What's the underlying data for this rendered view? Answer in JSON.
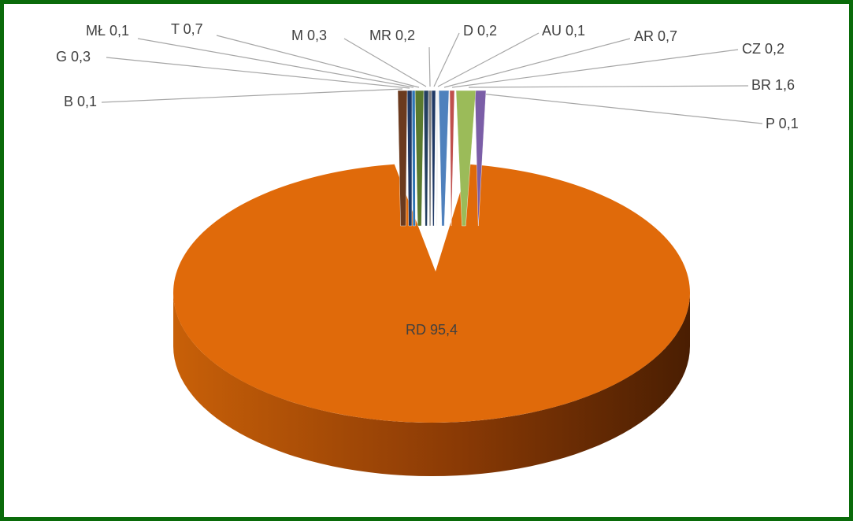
{
  "chart_data": {
    "type": "pie",
    "style": "3d-exploded",
    "title": "",
    "legend": "none",
    "slices": [
      {
        "label": "RD",
        "value": 95.4,
        "display": "RD 95,4",
        "color": "#E06A0A"
      },
      {
        "label": "P",
        "value": 0.1,
        "display": "P 0,1",
        "color": "#7B5EA7"
      },
      {
        "label": "BR",
        "value": 1.6,
        "display": "BR 1,6",
        "color": "#9BBB59"
      },
      {
        "label": "CZ",
        "value": 0.2,
        "display": "CZ 0,2",
        "color": "#C0504D"
      },
      {
        "label": "AR",
        "value": 0.7,
        "display": "AR 0,7",
        "color": "#4F81BD"
      },
      {
        "label": "AU",
        "value": 0.1,
        "display": "AU 0,1",
        "color": "#F2F2F2"
      },
      {
        "label": "D",
        "value": 0.2,
        "display": "D 0,2",
        "color": "#1F3864"
      },
      {
        "label": "MR",
        "value": 0.2,
        "display": "MR 0,2",
        "color": "#7F7F7F"
      },
      {
        "label": "M",
        "value": 0.3,
        "display": "M 0,3",
        "color": "#243F60"
      },
      {
        "label": "T",
        "value": 0.7,
        "display": "T 0,7",
        "color": "#5A7A2E"
      },
      {
        "label": "MŁ",
        "value": 0.1,
        "display": "MŁ 0,1",
        "color": "#2E75B6"
      },
      {
        "label": "G",
        "value": 0.3,
        "display": "G 0,3",
        "color": "#203864"
      },
      {
        "label": "B",
        "value": 0.1,
        "display": "B 0,1",
        "color": "#6B3A1E"
      }
    ]
  }
}
